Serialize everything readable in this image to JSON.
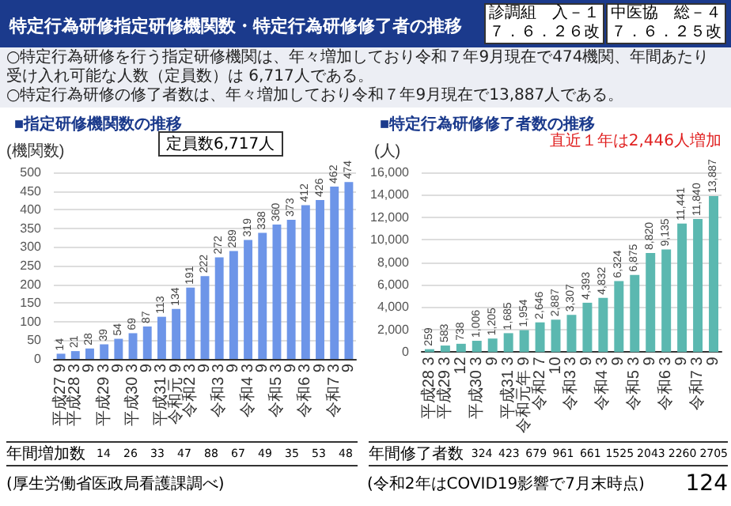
{
  "chart_data": [
    {
      "type": "bar",
      "title": "■指定研修機関数の推移",
      "ylabel": "(機関数)",
      "categories": [
        "平成27 9",
        "平成28 3",
        "9",
        "平成29 3",
        "9",
        "平成30 3",
        "9",
        "平成31 3",
        "令和元 9",
        "令和2 3",
        "9",
        "令和3 3",
        "9",
        "令和4 3",
        "9",
        "令和5 3",
        "9",
        "令和6 3",
        "9",
        "令和7 3",
        "9"
      ],
      "values": [
        14,
        21,
        28,
        39,
        54,
        69,
        87,
        113,
        134,
        191,
        222,
        272,
        289,
        319,
        338,
        360,
        373,
        412,
        426,
        462,
        474
      ],
      "color": "#6d95e8",
      "ylim": [
        0,
        500
      ],
      "yticks": [
        0,
        50,
        100,
        150,
        200,
        250,
        300,
        350,
        400,
        450,
        500
      ],
      "grid": "y",
      "data_labels": true,
      "annotations": [
        "特定行為研修指定研修機関数・特定行為研修修了者の推移",
        "診調組　入－１",
        "７．６．２６改",
        "中医協　総－４",
        "７．６．２５改",
        "○特定行為研修を行う指定研修機関は、年々増加しており令和７年9月現在で474機関、年間あたり受け入れ可能な人数（定員数）は 6,717人である。",
        "○特定行為研修の修了者数は、年々増加しており令和７年9月現在で13,887人である。",
        "定員数6,717人",
        "年間増加数",
        "14",
        "26",
        "33",
        "47",
        "88",
        "67",
        "49",
        "35",
        "53",
        "48",
        "(厚生労働省医政局看護課調べ)"
      ]
    },
    {
      "type": "bar",
      "title": "■特定行為研修修了者数の推移",
      "ylabel": "(人)",
      "categories": [
        "平成28 3",
        "平成29 3",
        "12",
        "平成30 3",
        "9",
        "平成31 3",
        "令和元年 9",
        "令和2 7",
        "10",
        "令和3 3",
        "9",
        "令和4 3",
        "9",
        "令和5 3",
        "9",
        "令和6 3",
        "9",
        "令和7 3",
        "9"
      ],
      "values": [
        259,
        583,
        738,
        1006,
        1205,
        1685,
        1954,
        2646,
        2887,
        3307,
        4393,
        4832,
        6324,
        6875,
        8820,
        9135,
        11441,
        11840,
        13887
      ],
      "value_labels": [
        "259",
        "583",
        "738",
        "1,006",
        "1,205",
        "1,685",
        "1,954",
        "2,646",
        "2,887",
        "3,307",
        "4,393",
        "4,832",
        "6,324",
        "6,875",
        "8,820",
        "9,135",
        "11,441",
        "11,840",
        "13,887"
      ],
      "color": "#5bb8b0",
      "ylim": [
        0,
        16000
      ],
      "yticks": [
        0,
        {
          "value": 2000,
          "label": "2,000"
        },
        {
          "value": 4000,
          "label": "4,000"
        },
        {
          "value": 6000,
          "label": "6,000"
        },
        {
          "value": 8000,
          "label": "8,000"
        },
        {
          "value": 10000,
          "label": "10,000"
        },
        {
          "value": 12000,
          "label": "12,000"
        },
        {
          "value": 14000,
          "label": "14,000"
        },
        {
          "value": 16000,
          "label": "16,000"
        }
      ],
      "grid": "y",
      "annotations": [
        "直近１年は2,446人増加",
        "年間修了者数",
        "324",
        "423",
        "679",
        "961",
        "661",
        "1525",
        "2043",
        "2260",
        "2705",
        "(令和2年はCOVID19影響で7月末時点)",
        "124"
      ]
    }
  ]
}
